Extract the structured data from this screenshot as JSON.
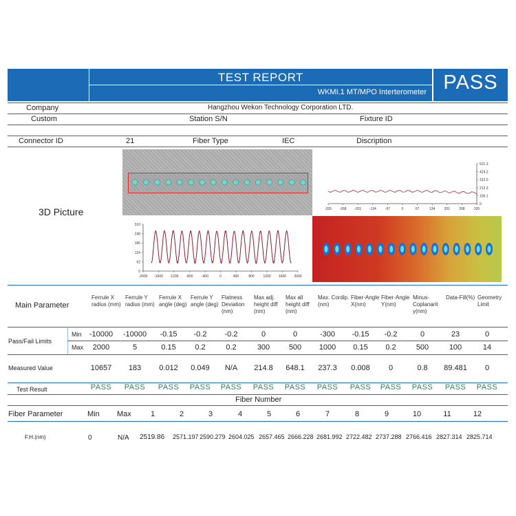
{
  "header": {
    "title": "TEST REPORT",
    "subtitle": "WKMI.1 MT/MPO Interterometer",
    "result": "PASS"
  },
  "info": {
    "company_label": "Company",
    "company_value": "Hangzhou Wekon Technology Corporation LTD.",
    "custom_label": "Custom",
    "station_label": "Station S/N",
    "fixture_label": "Fixture ID",
    "connector_label": "Connector ID",
    "connector_value": "21",
    "fiber_type_label": "Fiber Type",
    "fiber_type_value": "IEC",
    "description_label": "Discription"
  },
  "picture": {
    "label": "3D Picture"
  },
  "profile_chart": {
    "y_ticks": [
      "531.3",
      "424.2",
      "312.0",
      "212.3",
      "106.1",
      "0"
    ],
    "x_ticks": [
      "-335",
      "-268",
      "-201",
      "-134",
      "-67",
      "0",
      "67",
      "134",
      "201",
      "268",
      "335"
    ]
  },
  "wave_chart": {
    "y_ticks": [
      "310",
      "248",
      "186",
      "124",
      "62",
      "0"
    ],
    "x_ticks": [
      "-2000",
      "-1600",
      "-1200",
      "-800",
      "-400",
      "0",
      "400",
      "800",
      "1200",
      "1600",
      "2000"
    ],
    "peak_count": 16,
    "color": "#8b1c2a"
  },
  "params": {
    "main_label": "Main Parameter",
    "headers": [
      "Ferrule X radius (mm)",
      "Ferrule Y radius (mm)",
      "Ferrule X angle (deg)",
      "Ferrule Y angle (deg)",
      "Flatness Deviation (nm)",
      "Max adj. height diff (nm)",
      "Max all height diff (nm)",
      "Max. Cordip. (nm)",
      "Fiber-Angle X(nm)",
      "Fiber-Angle Y(nm)",
      "Minus-Coplanarit y(nm)",
      "Data-Fill(%)",
      "Geometry Limit"
    ],
    "limits_label": "Pass/Fail Limits",
    "min_label": "Min",
    "max_label": "Max",
    "min": [
      "-10000",
      "-10000",
      "-0.15",
      "-0.2",
      "-0.2",
      "0",
      "0",
      "-300",
      "-0.15",
      "-0.2",
      "0",
      "23",
      "0"
    ],
    "max": [
      "2000",
      "5",
      "0.15",
      "0.2",
      "0.2",
      "300",
      "500",
      "1000",
      "0.15",
      "0.2",
      "500",
      "100",
      "14"
    ],
    "measured_label": "Measured Value",
    "measured": [
      "10657",
      "183",
      "0.012",
      "0.049",
      "N/A",
      "214.8",
      "648.1",
      "237.3",
      "0.008",
      "0",
      "0.8",
      "89.481",
      "0"
    ],
    "result_label": "Test Result",
    "result": [
      "PASS",
      "PASS",
      "PASS",
      "PASS",
      "PASS",
      "PASS",
      "PASS",
      "PASS",
      "PASS",
      "PASS",
      "PASS",
      "PASS",
      "PASS"
    ]
  },
  "fiber": {
    "number_label": "Fiber Number",
    "param_label": "Fiber Parameter",
    "min_label": "Min",
    "max_label": "Max",
    "numbers": [
      "1",
      "2",
      "3",
      "4",
      "5",
      "6",
      "7",
      "8",
      "9",
      "10",
      "11",
      "12"
    ],
    "fh_label": "F.H.(nm)",
    "fh_min": "0",
    "fh_max": "N/A",
    "fh_values": [
      "2519.86",
      "2571.197",
      "2590.279",
      "2604.025",
      "2657.465",
      "2666.228",
      "2681.992",
      "2722.482",
      "2737.288",
      "2766.416",
      "2827.314",
      "2825.714"
    ]
  },
  "colors": {
    "header_blue": "#1c6bb6",
    "pass_green": "#2f7f5a"
  }
}
